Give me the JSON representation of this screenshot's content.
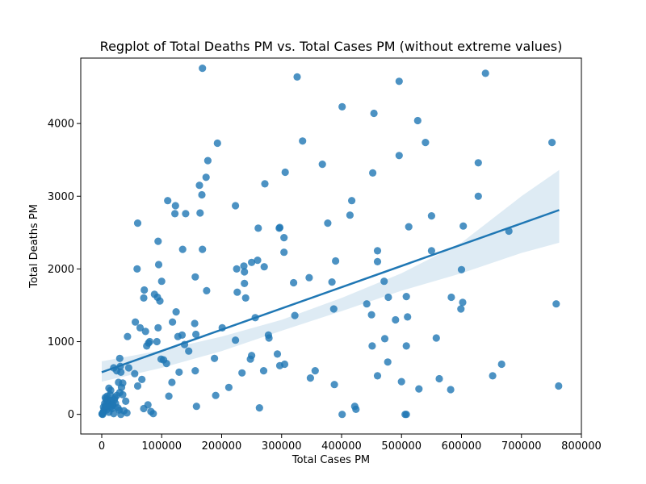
{
  "chart_data": {
    "type": "scatter",
    "title": "Regplot of Total Deaths PM vs. Total Cases PM (without extreme values)",
    "xlabel": "Total Cases PM",
    "ylabel": "Total Deaths PM",
    "xlim": [
      -35000,
      800000
    ],
    "ylim": [
      -270,
      4900
    ],
    "xticks": [
      0,
      100000,
      200000,
      300000,
      400000,
      500000,
      600000,
      700000,
      800000
    ],
    "yticks": [
      0,
      1000,
      2000,
      3000,
      4000
    ],
    "grid": false,
    "point_color": "#1f77b4",
    "line_color": "#1f77b4",
    "band_color": "#1f77b4",
    "points": [
      [
        168000,
        4760
      ],
      [
        326000,
        4640
      ],
      [
        640000,
        4690
      ],
      [
        496000,
        4580
      ],
      [
        401000,
        4230
      ],
      [
        454000,
        4140
      ],
      [
        527000,
        4040
      ],
      [
        193000,
        3730
      ],
      [
        335000,
        3760
      ],
      [
        540000,
        3740
      ],
      [
        751000,
        3740
      ],
      [
        177000,
        3490
      ],
      [
        368000,
        3440
      ],
      [
        628000,
        3460
      ],
      [
        306000,
        3330
      ],
      [
        452000,
        3320
      ],
      [
        496000,
        3560
      ],
      [
        174000,
        3260
      ],
      [
        163000,
        3150
      ],
      [
        272000,
        3170
      ],
      [
        167000,
        3020
      ],
      [
        110000,
        2940
      ],
      [
        417000,
        2940
      ],
      [
        628000,
        3000
      ],
      [
        123000,
        2870
      ],
      [
        223000,
        2870
      ],
      [
        122000,
        2760
      ],
      [
        140000,
        2760
      ],
      [
        164000,
        2770
      ],
      [
        414000,
        2740
      ],
      [
        550000,
        2730
      ],
      [
        60000,
        2630
      ],
      [
        261000,
        2560
      ],
      [
        296000,
        2560
      ],
      [
        297000,
        2570
      ],
      [
        377000,
        2630
      ],
      [
        512000,
        2580
      ],
      [
        603000,
        2590
      ],
      [
        679000,
        2520
      ],
      [
        94000,
        2380
      ],
      [
        135000,
        2270
      ],
      [
        168000,
        2270
      ],
      [
        304000,
        2430
      ],
      [
        304000,
        2230
      ],
      [
        460000,
        2250
      ],
      [
        550000,
        2250
      ],
      [
        95000,
        2060
      ],
      [
        100000,
        1830
      ],
      [
        156000,
        1890
      ],
      [
        225000,
        2000
      ],
      [
        237000,
        2040
      ],
      [
        238000,
        1960
      ],
      [
        250000,
        2090
      ],
      [
        260000,
        2120
      ],
      [
        271000,
        2030
      ],
      [
        238000,
        1800
      ],
      [
        320000,
        1810
      ],
      [
        346000,
        1880
      ],
      [
        390000,
        2110
      ],
      [
        384000,
        1820
      ],
      [
        460000,
        2100
      ],
      [
        471000,
        1830
      ],
      [
        600000,
        1990
      ],
      [
        59000,
        2000
      ],
      [
        71000,
        1710
      ],
      [
        70000,
        1600
      ],
      [
        88000,
        1650
      ],
      [
        93000,
        1610
      ],
      [
        97000,
        1560
      ],
      [
        175000,
        1700
      ],
      [
        226000,
        1680
      ],
      [
        240000,
        1600
      ],
      [
        478000,
        1610
      ],
      [
        508000,
        1620
      ],
      [
        583000,
        1610
      ],
      [
        602000,
        1540
      ],
      [
        599000,
        1450
      ],
      [
        758000,
        1520
      ],
      [
        56000,
        1270
      ],
      [
        64000,
        1190
      ],
      [
        73000,
        1140
      ],
      [
        80000,
        1000
      ],
      [
        78000,
        980
      ],
      [
        75000,
        940
      ],
      [
        92000,
        1000
      ],
      [
        94000,
        1190
      ],
      [
        118000,
        1270
      ],
      [
        124000,
        1410
      ],
      [
        127000,
        1070
      ],
      [
        134000,
        1090
      ],
      [
        138000,
        960
      ],
      [
        145000,
        870
      ],
      [
        155000,
        1250
      ],
      [
        157000,
        1100
      ],
      [
        201000,
        1190
      ],
      [
        256000,
        1330
      ],
      [
        278000,
        1090
      ],
      [
        279000,
        1050
      ],
      [
        322000,
        1360
      ],
      [
        387000,
        1450
      ],
      [
        442000,
        1520
      ],
      [
        450000,
        1370
      ],
      [
        490000,
        1300
      ],
      [
        510000,
        1340
      ],
      [
        472000,
        1040
      ],
      [
        558000,
        1050
      ],
      [
        43000,
        1070
      ],
      [
        30000,
        770
      ],
      [
        31000,
        660
      ],
      [
        32000,
        580
      ],
      [
        28000,
        440
      ],
      [
        35000,
        430
      ],
      [
        33000,
        370
      ],
      [
        45000,
        640
      ],
      [
        55000,
        560
      ],
      [
        60000,
        390
      ],
      [
        67000,
        480
      ],
      [
        99000,
        760
      ],
      [
        103000,
        750
      ],
      [
        108000,
        700
      ],
      [
        117000,
        440
      ],
      [
        129000,
        580
      ],
      [
        156000,
        600
      ],
      [
        188000,
        770
      ],
      [
        223000,
        1020
      ],
      [
        234000,
        570
      ],
      [
        248000,
        760
      ],
      [
        250000,
        810
      ],
      [
        270000,
        600
      ],
      [
        293000,
        830
      ],
      [
        297000,
        670
      ],
      [
        305000,
        690
      ],
      [
        348000,
        500
      ],
      [
        356000,
        600
      ],
      [
        388000,
        410
      ],
      [
        451000,
        940
      ],
      [
        460000,
        530
      ],
      [
        477000,
        720
      ],
      [
        500000,
        450
      ],
      [
        508000,
        940
      ],
      [
        529000,
        350
      ],
      [
        563000,
        490
      ],
      [
        582000,
        340
      ],
      [
        652000,
        530
      ],
      [
        667000,
        690
      ],
      [
        762000,
        390
      ],
      [
        20000,
        640
      ],
      [
        25000,
        600
      ],
      [
        12000,
        360
      ],
      [
        15000,
        330
      ],
      [
        22000,
        230
      ],
      [
        10000,
        200
      ],
      [
        8000,
        160
      ],
      [
        6000,
        110
      ],
      [
        5000,
        80
      ],
      [
        4000,
        60
      ],
      [
        3000,
        40
      ],
      [
        2000,
        20
      ],
      [
        1000,
        10
      ],
      [
        500,
        5
      ],
      [
        1500,
        0
      ],
      [
        3000,
        100
      ],
      [
        5000,
        150
      ],
      [
        7000,
        210
      ],
      [
        9000,
        250
      ],
      [
        11000,
        180
      ],
      [
        13000,
        140
      ],
      [
        15000,
        100
      ],
      [
        17000,
        80
      ],
      [
        19000,
        120
      ],
      [
        21000,
        200
      ],
      [
        23000,
        150
      ],
      [
        25000,
        260
      ],
      [
        27000,
        90
      ],
      [
        29000,
        60
      ],
      [
        30000,
        300
      ],
      [
        32000,
        0
      ],
      [
        35000,
        270
      ],
      [
        37000,
        50
      ],
      [
        40000,
        180
      ],
      [
        42000,
        20
      ],
      [
        6000,
        230
      ],
      [
        8000,
        60
      ],
      [
        10000,
        110
      ],
      [
        12000,
        30
      ],
      [
        14000,
        270
      ],
      [
        16000,
        190
      ],
      [
        18000,
        140
      ],
      [
        20000,
        10
      ],
      [
        70000,
        80
      ],
      [
        77000,
        130
      ],
      [
        82000,
        40
      ],
      [
        86000,
        10
      ],
      [
        112000,
        250
      ],
      [
        158000,
        110
      ],
      [
        190000,
        260
      ],
      [
        212000,
        370
      ],
      [
        263000,
        90
      ],
      [
        401000,
        0
      ],
      [
        422000,
        110
      ],
      [
        424000,
        70
      ],
      [
        506000,
        0
      ],
      [
        508000,
        0
      ]
    ],
    "regression": {
      "x_start": 0,
      "x_end": 763000,
      "y_start": 580,
      "y_end": 2810
    },
    "confidence_band": {
      "x": [
        0,
        100000,
        200000,
        300000,
        400000,
        500000,
        600000,
        700000,
        763000
      ],
      "upper": [
        730,
        880,
        1070,
        1300,
        1600,
        1940,
        2360,
        3000,
        3360
      ],
      "lower": [
        450,
        640,
        870,
        1150,
        1420,
        1700,
        1940,
        2220,
        2360
      ]
    }
  }
}
